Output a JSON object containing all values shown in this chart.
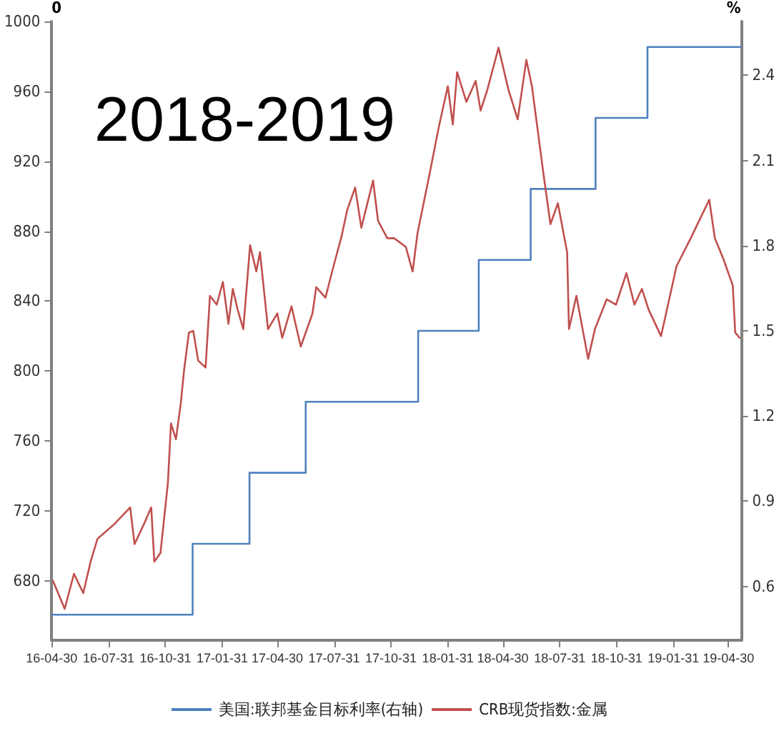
{
  "chart_data": {
    "type": "line",
    "annotations": [
      "2018-2019"
    ],
    "ylabel": "0",
    "y2label": "%",
    "xlim": [
      "2016-04-30",
      "2019-05-20"
    ],
    "xticks": [
      {
        "value": "2016-04-30",
        "label": "16-04-30"
      },
      {
        "value": "2016-07-31",
        "label": "16-07-31"
      },
      {
        "value": "2016-10-31",
        "label": "16-10-31"
      },
      {
        "value": "2017-01-31",
        "label": "17-01-31"
      },
      {
        "value": "2017-04-30",
        "label": "17-04-30"
      },
      {
        "value": "2017-07-31",
        "label": "17-07-31"
      },
      {
        "value": "2017-10-31",
        "label": "17-10-31"
      },
      {
        "value": "2018-01-31",
        "label": "18-01-31"
      },
      {
        "value": "2018-04-30",
        "label": "18-04-30"
      },
      {
        "value": "2018-07-31",
        "label": "18-07-31"
      },
      {
        "value": "2018-10-31",
        "label": "18-10-31"
      },
      {
        "value": "2019-01-31",
        "label": "19-01-31"
      },
      {
        "value": "2019-04-30",
        "label": "19-04-30"
      }
    ],
    "ylim": [
      646,
      1000
    ],
    "yticks": [
      680,
      720,
      760,
      800,
      840,
      880,
      920,
      960,
      1000
    ],
    "y2lim": [
      0.41,
      2.59
    ],
    "y2ticks": [
      0.6,
      0.9,
      1.2,
      1.5,
      1.8,
      2.1,
      2.4
    ],
    "grid": false,
    "legend": "bottom",
    "marker": "none",
    "series": [
      {
        "name": "美国:联邦基金目标利率(右轴)",
        "type": "step",
        "axis": "y2",
        "color": "#4f81bd",
        "x": [
          "2016-04-30",
          "2016-12-14",
          "2017-03-16",
          "2017-06-15",
          "2017-12-14",
          "2018-03-22",
          "2018-06-14",
          "2018-09-27",
          "2018-12-20",
          "2019-05-20"
        ],
        "values": [
          0.5,
          0.75,
          1.0,
          1.25,
          1.5,
          1.75,
          2.0,
          2.25,
          2.5,
          2.5
        ]
      },
      {
        "name": "CRB现货指数:金属",
        "color": "#c0504d",
        "x": [
          "2016-05-02",
          "2016-05-21",
          "2016-06-05",
          "2016-06-20",
          "2016-07-02",
          "2016-07-13",
          "2016-08-08",
          "2016-09-04",
          "2016-09-11",
          "2016-09-27",
          "2016-10-08",
          "2016-10-13",
          "2016-10-23",
          "2016-11-04",
          "2016-11-09",
          "2016-11-17",
          "2016-11-25",
          "2016-11-30",
          "2016-12-08",
          "2016-12-15",
          "2016-12-23",
          "2017-01-04",
          "2017-01-11",
          "2017-01-22",
          "2017-02-01",
          "2017-02-10",
          "2017-02-17",
          "2017-02-25",
          "2017-03-06",
          "2017-03-17",
          "2017-03-27",
          "2017-04-02",
          "2017-04-15",
          "2017-04-30",
          "2017-05-08",
          "2017-05-23",
          "2017-06-07",
          "2017-06-26",
          "2017-07-02",
          "2017-07-17",
          "2017-07-30",
          "2017-08-12",
          "2017-08-21",
          "2017-09-03",
          "2017-09-13",
          "2017-10-02",
          "2017-10-10",
          "2017-10-25",
          "2017-11-05",
          "2017-11-24",
          "2017-12-05",
          "2017-12-13",
          "2018-01-01",
          "2018-01-16",
          "2018-01-31",
          "2018-02-08",
          "2018-02-15",
          "2018-03-02",
          "2018-03-17",
          "2018-03-25",
          "2018-04-05",
          "2018-04-23",
          "2018-05-09",
          "2018-05-24",
          "2018-06-07",
          "2018-06-16",
          "2018-07-05",
          "2018-07-16",
          "2018-07-28",
          "2018-08-12",
          "2018-08-15",
          "2018-08-27",
          "2018-09-15",
          "2018-09-26",
          "2018-10-15",
          "2018-10-30",
          "2018-11-16",
          "2018-11-29",
          "2018-12-11",
          "2018-12-22",
          "2019-01-11",
          "2019-02-05",
          "2019-02-28",
          "2019-03-15",
          "2019-03-30",
          "2019-04-08",
          "2019-04-22",
          "2019-05-07",
          "2019-05-11",
          "2019-05-18"
        ],
        "values": [
          680,
          664,
          684,
          673,
          691,
          704,
          712,
          722,
          701,
          713,
          722,
          691,
          696,
          736,
          770,
          761,
          782,
          800,
          822,
          823,
          806,
          802,
          843,
          838,
          851,
          827,
          847,
          835,
          824,
          872,
          857,
          868,
          824,
          833,
          819,
          837,
          814,
          833,
          848,
          842,
          860,
          877,
          892,
          905,
          882,
          909,
          886,
          876,
          876,
          871,
          857,
          879,
          912,
          939,
          963,
          941,
          971,
          954,
          966,
          949,
          961,
          985,
          961,
          944,
          978,
          963,
          912,
          884,
          896,
          868,
          824,
          843,
          807,
          824,
          841,
          838,
          856,
          838,
          847,
          835,
          820,
          860,
          876,
          887,
          898,
          876,
          864,
          849,
          822,
          819
        ]
      }
    ]
  }
}
